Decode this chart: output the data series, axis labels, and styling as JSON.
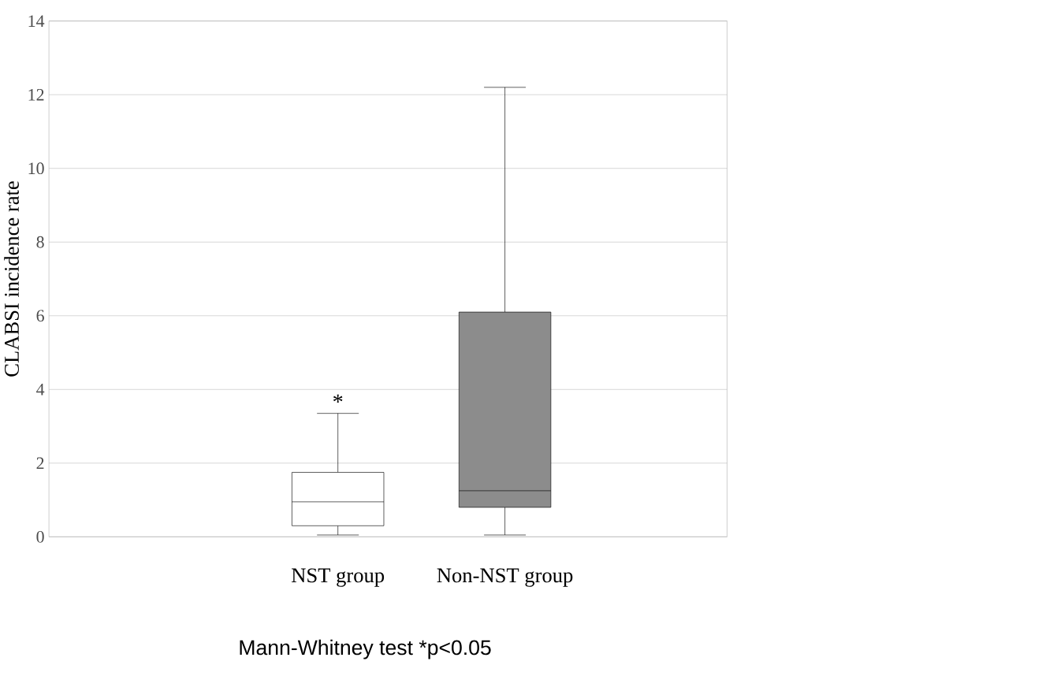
{
  "chart_data": {
    "type": "box",
    "ylabel": "CLABSI incidence rate",
    "categories": [
      "NST group",
      "Non-NST group"
    ],
    "boxes": [
      {
        "low": 0.05,
        "q1": 0.3,
        "median": 0.95,
        "q3": 1.75,
        "high": 3.35
      },
      {
        "low": 0.05,
        "q1": 0.8,
        "median": 1.25,
        "q3": 6.1,
        "high": 12.2
      }
    ],
    "colors": [
      "#ffffff",
      "#8c8c8c"
    ],
    "ylim": [
      0,
      14
    ],
    "yticks": [
      0,
      2,
      4,
      6,
      8,
      10,
      12,
      14
    ],
    "grid": "y",
    "annotations": [
      "*",
      "Mann-Whitney test   *p<0.05"
    ]
  }
}
